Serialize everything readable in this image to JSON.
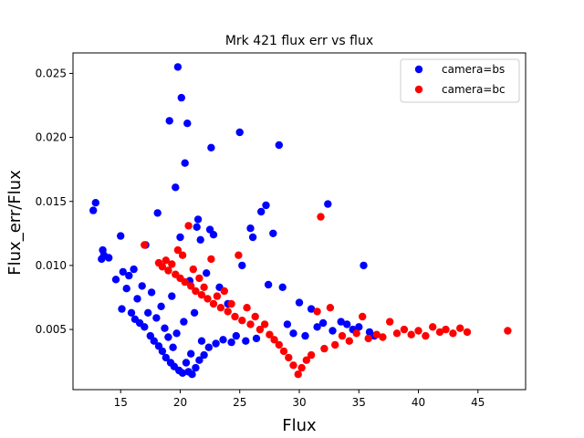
{
  "chart_data": {
    "type": "scatter",
    "title": "Mrk 421 flux err vs flux",
    "xlabel": "Flux",
    "ylabel": "Flux_err/Flux",
    "xlim": [
      11.0,
      49.0
    ],
    "ylim": [
      0.0003,
      0.0266
    ],
    "xticks": [
      "15",
      "20",
      "25",
      "30",
      "35",
      "40",
      "45"
    ],
    "yticks": [
      "0.005",
      "0.010",
      "0.015",
      "0.020",
      "0.025"
    ],
    "legend_position": "top-right",
    "series": [
      {
        "name": "camera=bs",
        "color": "#0000ff",
        "points": [
          [
            12.7,
            0.0143
          ],
          [
            12.9,
            0.0149
          ],
          [
            13.4,
            0.0105
          ],
          [
            13.5,
            0.0112
          ],
          [
            13.6,
            0.0108
          ],
          [
            14.0,
            0.0106
          ],
          [
            14.6,
            0.0089
          ],
          [
            15.0,
            0.0123
          ],
          [
            15.2,
            0.0095
          ],
          [
            15.1,
            0.0066
          ],
          [
            15.5,
            0.0082
          ],
          [
            15.7,
            0.0092
          ],
          [
            15.9,
            0.0063
          ],
          [
            16.1,
            0.0097
          ],
          [
            16.2,
            0.0058
          ],
          [
            16.4,
            0.0074
          ],
          [
            16.6,
            0.0055
          ],
          [
            16.8,
            0.0084
          ],
          [
            17.0,
            0.0052
          ],
          [
            17.1,
            0.0116
          ],
          [
            17.3,
            0.0063
          ],
          [
            17.5,
            0.0045
          ],
          [
            17.6,
            0.0079
          ],
          [
            17.8,
            0.0041
          ],
          [
            18.0,
            0.0059
          ],
          [
            18.1,
            0.0141
          ],
          [
            18.2,
            0.0037
          ],
          [
            18.4,
            0.0068
          ],
          [
            18.5,
            0.0033
          ],
          [
            18.7,
            0.0051
          ],
          [
            18.8,
            0.0028
          ],
          [
            19.0,
            0.0044
          ],
          [
            19.1,
            0.0213
          ],
          [
            19.2,
            0.0024
          ],
          [
            19.3,
            0.0076
          ],
          [
            19.4,
            0.0036
          ],
          [
            19.5,
            0.0021
          ],
          [
            19.6,
            0.0161
          ],
          [
            19.7,
            0.0047
          ],
          [
            19.8,
            0.0255
          ],
          [
            19.9,
            0.0018
          ],
          [
            20.0,
            0.0122
          ],
          [
            20.1,
            0.0231
          ],
          [
            20.2,
            0.0016
          ],
          [
            20.3,
            0.0056
          ],
          [
            20.4,
            0.018
          ],
          [
            20.5,
            0.0024
          ],
          [
            20.6,
            0.0211
          ],
          [
            20.7,
            0.0017
          ],
          [
            20.8,
            0.0088
          ],
          [
            20.9,
            0.0031
          ],
          [
            21.0,
            0.0015
          ],
          [
            21.2,
            0.0063
          ],
          [
            21.3,
            0.002
          ],
          [
            21.4,
            0.013
          ],
          [
            21.5,
            0.0136
          ],
          [
            21.6,
            0.0026
          ],
          [
            21.7,
            0.012
          ],
          [
            21.8,
            0.0041
          ],
          [
            22.0,
            0.003
          ],
          [
            22.2,
            0.0094
          ],
          [
            22.4,
            0.0036
          ],
          [
            22.5,
            0.0128
          ],
          [
            22.6,
            0.0192
          ],
          [
            22.8,
            0.0124
          ],
          [
            23.0,
            0.0039
          ],
          [
            23.3,
            0.0083
          ],
          [
            23.6,
            0.0042
          ],
          [
            24.0,
            0.007
          ],
          [
            24.3,
            0.004
          ],
          [
            24.7,
            0.0045
          ],
          [
            25.0,
            0.0204
          ],
          [
            25.2,
            0.01
          ],
          [
            25.5,
            0.0041
          ],
          [
            25.9,
            0.0129
          ],
          [
            26.1,
            0.0122
          ],
          [
            26.4,
            0.0043
          ],
          [
            26.8,
            0.0142
          ],
          [
            27.2,
            0.0147
          ],
          [
            27.4,
            0.0085
          ],
          [
            27.8,
            0.0125
          ],
          [
            28.3,
            0.0194
          ],
          [
            28.6,
            0.0083
          ],
          [
            29.0,
            0.0054
          ],
          [
            29.5,
            0.0047
          ],
          [
            30.0,
            0.0071
          ],
          [
            30.5,
            0.0045
          ],
          [
            31.0,
            0.0066
          ],
          [
            31.5,
            0.0052
          ],
          [
            32.0,
            0.0055
          ],
          [
            32.4,
            0.0148
          ],
          [
            32.8,
            0.0049
          ],
          [
            33.5,
            0.0056
          ],
          [
            34.0,
            0.0054
          ],
          [
            34.5,
            0.005
          ],
          [
            35.0,
            0.0052
          ],
          [
            35.4,
            0.01
          ],
          [
            35.9,
            0.0048
          ],
          [
            36.3,
            0.0045
          ]
        ]
      },
      {
        "name": "camera=bc",
        "color": "#ff0000",
        "points": [
          [
            17.0,
            0.0116
          ],
          [
            18.2,
            0.0102
          ],
          [
            18.5,
            0.0099
          ],
          [
            18.8,
            0.0104
          ],
          [
            19.0,
            0.0096
          ],
          [
            19.3,
            0.0101
          ],
          [
            19.6,
            0.0093
          ],
          [
            19.8,
            0.0112
          ],
          [
            20.0,
            0.009
          ],
          [
            20.2,
            0.0108
          ],
          [
            20.4,
            0.0087
          ],
          [
            20.7,
            0.0131
          ],
          [
            20.9,
            0.0084
          ],
          [
            21.1,
            0.0097
          ],
          [
            21.3,
            0.008
          ],
          [
            21.6,
            0.009
          ],
          [
            21.8,
            0.0077
          ],
          [
            22.0,
            0.0083
          ],
          [
            22.3,
            0.0074
          ],
          [
            22.6,
            0.0105
          ],
          [
            22.8,
            0.007
          ],
          [
            23.1,
            0.0076
          ],
          [
            23.4,
            0.0067
          ],
          [
            23.7,
            0.008
          ],
          [
            24.0,
            0.0064
          ],
          [
            24.3,
            0.007
          ],
          [
            24.6,
            0.006
          ],
          [
            24.9,
            0.0108
          ],
          [
            25.2,
            0.0057
          ],
          [
            25.6,
            0.0067
          ],
          [
            25.9,
            0.0054
          ],
          [
            26.3,
            0.006
          ],
          [
            26.7,
            0.005
          ],
          [
            27.1,
            0.0054
          ],
          [
            27.5,
            0.0046
          ],
          [
            27.9,
            0.0042
          ],
          [
            28.3,
            0.0038
          ],
          [
            28.7,
            0.0033
          ],
          [
            29.1,
            0.0028
          ],
          [
            29.5,
            0.0022
          ],
          [
            29.9,
            0.0015
          ],
          [
            30.2,
            0.002
          ],
          [
            30.6,
            0.0026
          ],
          [
            31.0,
            0.003
          ],
          [
            31.5,
            0.0064
          ],
          [
            31.8,
            0.0138
          ],
          [
            32.1,
            0.0035
          ],
          [
            32.6,
            0.0067
          ],
          [
            33.0,
            0.0038
          ],
          [
            33.6,
            0.0045
          ],
          [
            34.2,
            0.0041
          ],
          [
            34.8,
            0.0047
          ],
          [
            35.3,
            0.006
          ],
          [
            35.8,
            0.0043
          ],
          [
            36.5,
            0.0046
          ],
          [
            37.0,
            0.0044
          ],
          [
            37.6,
            0.0056
          ],
          [
            38.2,
            0.0047
          ],
          [
            38.8,
            0.005
          ],
          [
            39.4,
            0.0046
          ],
          [
            40.0,
            0.0049
          ],
          [
            40.6,
            0.0045
          ],
          [
            41.2,
            0.0052
          ],
          [
            41.8,
            0.0048
          ],
          [
            42.3,
            0.005
          ],
          [
            42.9,
            0.0047
          ],
          [
            43.5,
            0.0051
          ],
          [
            44.1,
            0.0048
          ],
          [
            47.5,
            0.0049
          ]
        ]
      }
    ]
  }
}
